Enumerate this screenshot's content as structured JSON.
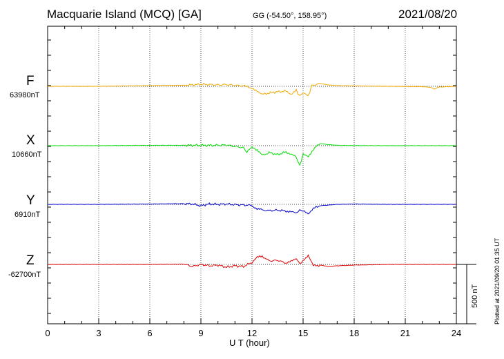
{
  "header": {
    "station": "Macquarie Island (MCQ)  [GA]",
    "coords": "GG (-54.50°, 158.95°)",
    "date": "2021/08/20"
  },
  "plotted_note": "Plotted at 2021/09/20 01:35 UT",
  "scale_bar_label": "500 nT",
  "colors": {
    "F": "#f0a800",
    "X": "#00dd00",
    "Y": "#0000cc",
    "Z": "#dd0000"
  },
  "chart_data": {
    "type": "line",
    "title": "Macquarie Island (MCQ)  [GA]",
    "xlabel": "U T (hour)",
    "ylabel": "",
    "xlim": [
      0,
      24
    ],
    "xticks": [
      0,
      3,
      6,
      9,
      12,
      15,
      18,
      21,
      24
    ],
    "scale_bar_nT": 500,
    "grid": true,
    "series": [
      {
        "name": "F",
        "baseline": "63980nT",
        "x": [
          0,
          3,
          6,
          8,
          8.5,
          9,
          9.5,
          10,
          10.5,
          11,
          11.5,
          11.8,
          12,
          12.3,
          12.6,
          13,
          13.5,
          14,
          14.3,
          14.6,
          14.8,
          15,
          15.3,
          15.5,
          16,
          16.5,
          17,
          18,
          20,
          22,
          22.5,
          22.7,
          23,
          24
        ],
        "values": [
          0,
          0,
          10,
          15,
          20,
          30,
          25,
          20,
          25,
          15,
          5,
          -15,
          -35,
          -60,
          -120,
          -95,
          -80,
          -70,
          -110,
          -60,
          -140,
          -90,
          -150,
          10,
          40,
          20,
          10,
          5,
          0,
          -5,
          -15,
          -40,
          -10,
          0
        ]
      },
      {
        "name": "X",
        "baseline": "10660nT",
        "x": [
          0,
          3,
          6,
          8,
          9,
          10,
          10.5,
          11,
          11.5,
          11.7,
          12,
          12.3,
          12.6,
          13,
          13.5,
          14,
          14.3,
          14.6,
          14.8,
          15,
          15.3,
          15.6,
          16,
          16.5,
          17,
          18,
          20,
          22,
          24
        ],
        "values": [
          0,
          0,
          5,
          5,
          5,
          5,
          10,
          -10,
          -30,
          -100,
          -15,
          -60,
          -140,
          -100,
          -130,
          -90,
          -120,
          -170,
          -290,
          -130,
          -160,
          -50,
          30,
          15,
          5,
          2,
          0,
          0,
          0
        ]
      },
      {
        "name": "Y",
        "baseline": "6910nT",
        "x": [
          0,
          3,
          6,
          8,
          8.5,
          9,
          9.5,
          10,
          10.5,
          11,
          11.5,
          12,
          12.3,
          12.6,
          13,
          13.5,
          14,
          14.3,
          14.6,
          14.8,
          15,
          15.3,
          15.6,
          16,
          17,
          18,
          20,
          22,
          24
        ],
        "values": [
          0,
          0,
          5,
          10,
          5,
          -20,
          5,
          0,
          5,
          -5,
          -10,
          -15,
          -70,
          -80,
          -90,
          -85,
          -95,
          -110,
          -130,
          -80,
          -100,
          -130,
          -60,
          -20,
          0,
          5,
          0,
          0,
          0
        ]
      },
      {
        "name": "Z",
        "baseline": "-62700nT",
        "x": [
          0,
          3,
          6,
          8,
          8.5,
          9,
          9.5,
          10,
          10.5,
          11,
          11.5,
          12,
          12.3,
          12.6,
          13,
          13.5,
          14,
          14.3,
          14.6,
          14.8,
          15,
          15.3,
          15.6,
          16,
          16.5,
          17,
          18,
          20,
          22,
          24
        ],
        "values": [
          0,
          0,
          0,
          5,
          -30,
          0,
          -20,
          -10,
          -40,
          -20,
          -30,
          30,
          100,
          120,
          50,
          60,
          20,
          40,
          90,
          10,
          50,
          140,
          -20,
          -10,
          -30,
          -20,
          -10,
          0,
          0,
          0
        ]
      }
    ]
  }
}
